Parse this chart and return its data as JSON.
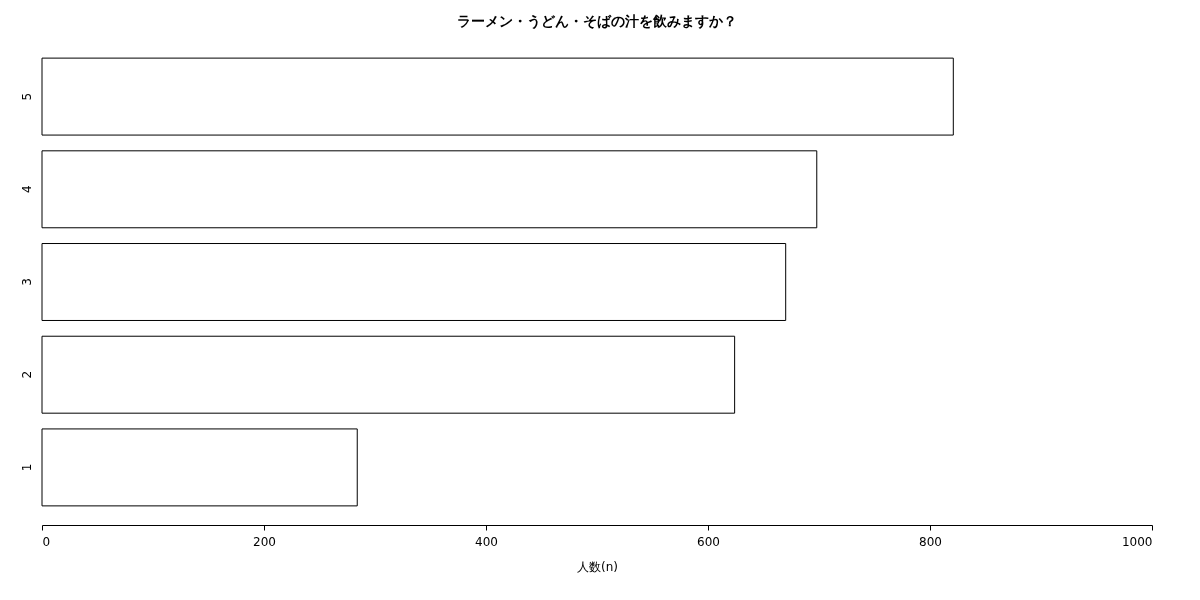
{
  "chart_data": {
    "type": "bar",
    "orientation": "horizontal",
    "title": "ラーメン・うどん・そばの汁を飲みますか？",
    "xlabel": "人数(n)",
    "categories": [
      "5",
      "4",
      "3",
      "2",
      "1"
    ],
    "series": [
      {
        "color": "#ffffff",
        "values": [
          821,
          698,
          670,
          624,
          284
        ]
      }
    ],
    "xlim": [
      0,
      1000
    ],
    "xticks": [
      0,
      200,
      400,
      600,
      800,
      1000
    ],
    "grid": false
  }
}
